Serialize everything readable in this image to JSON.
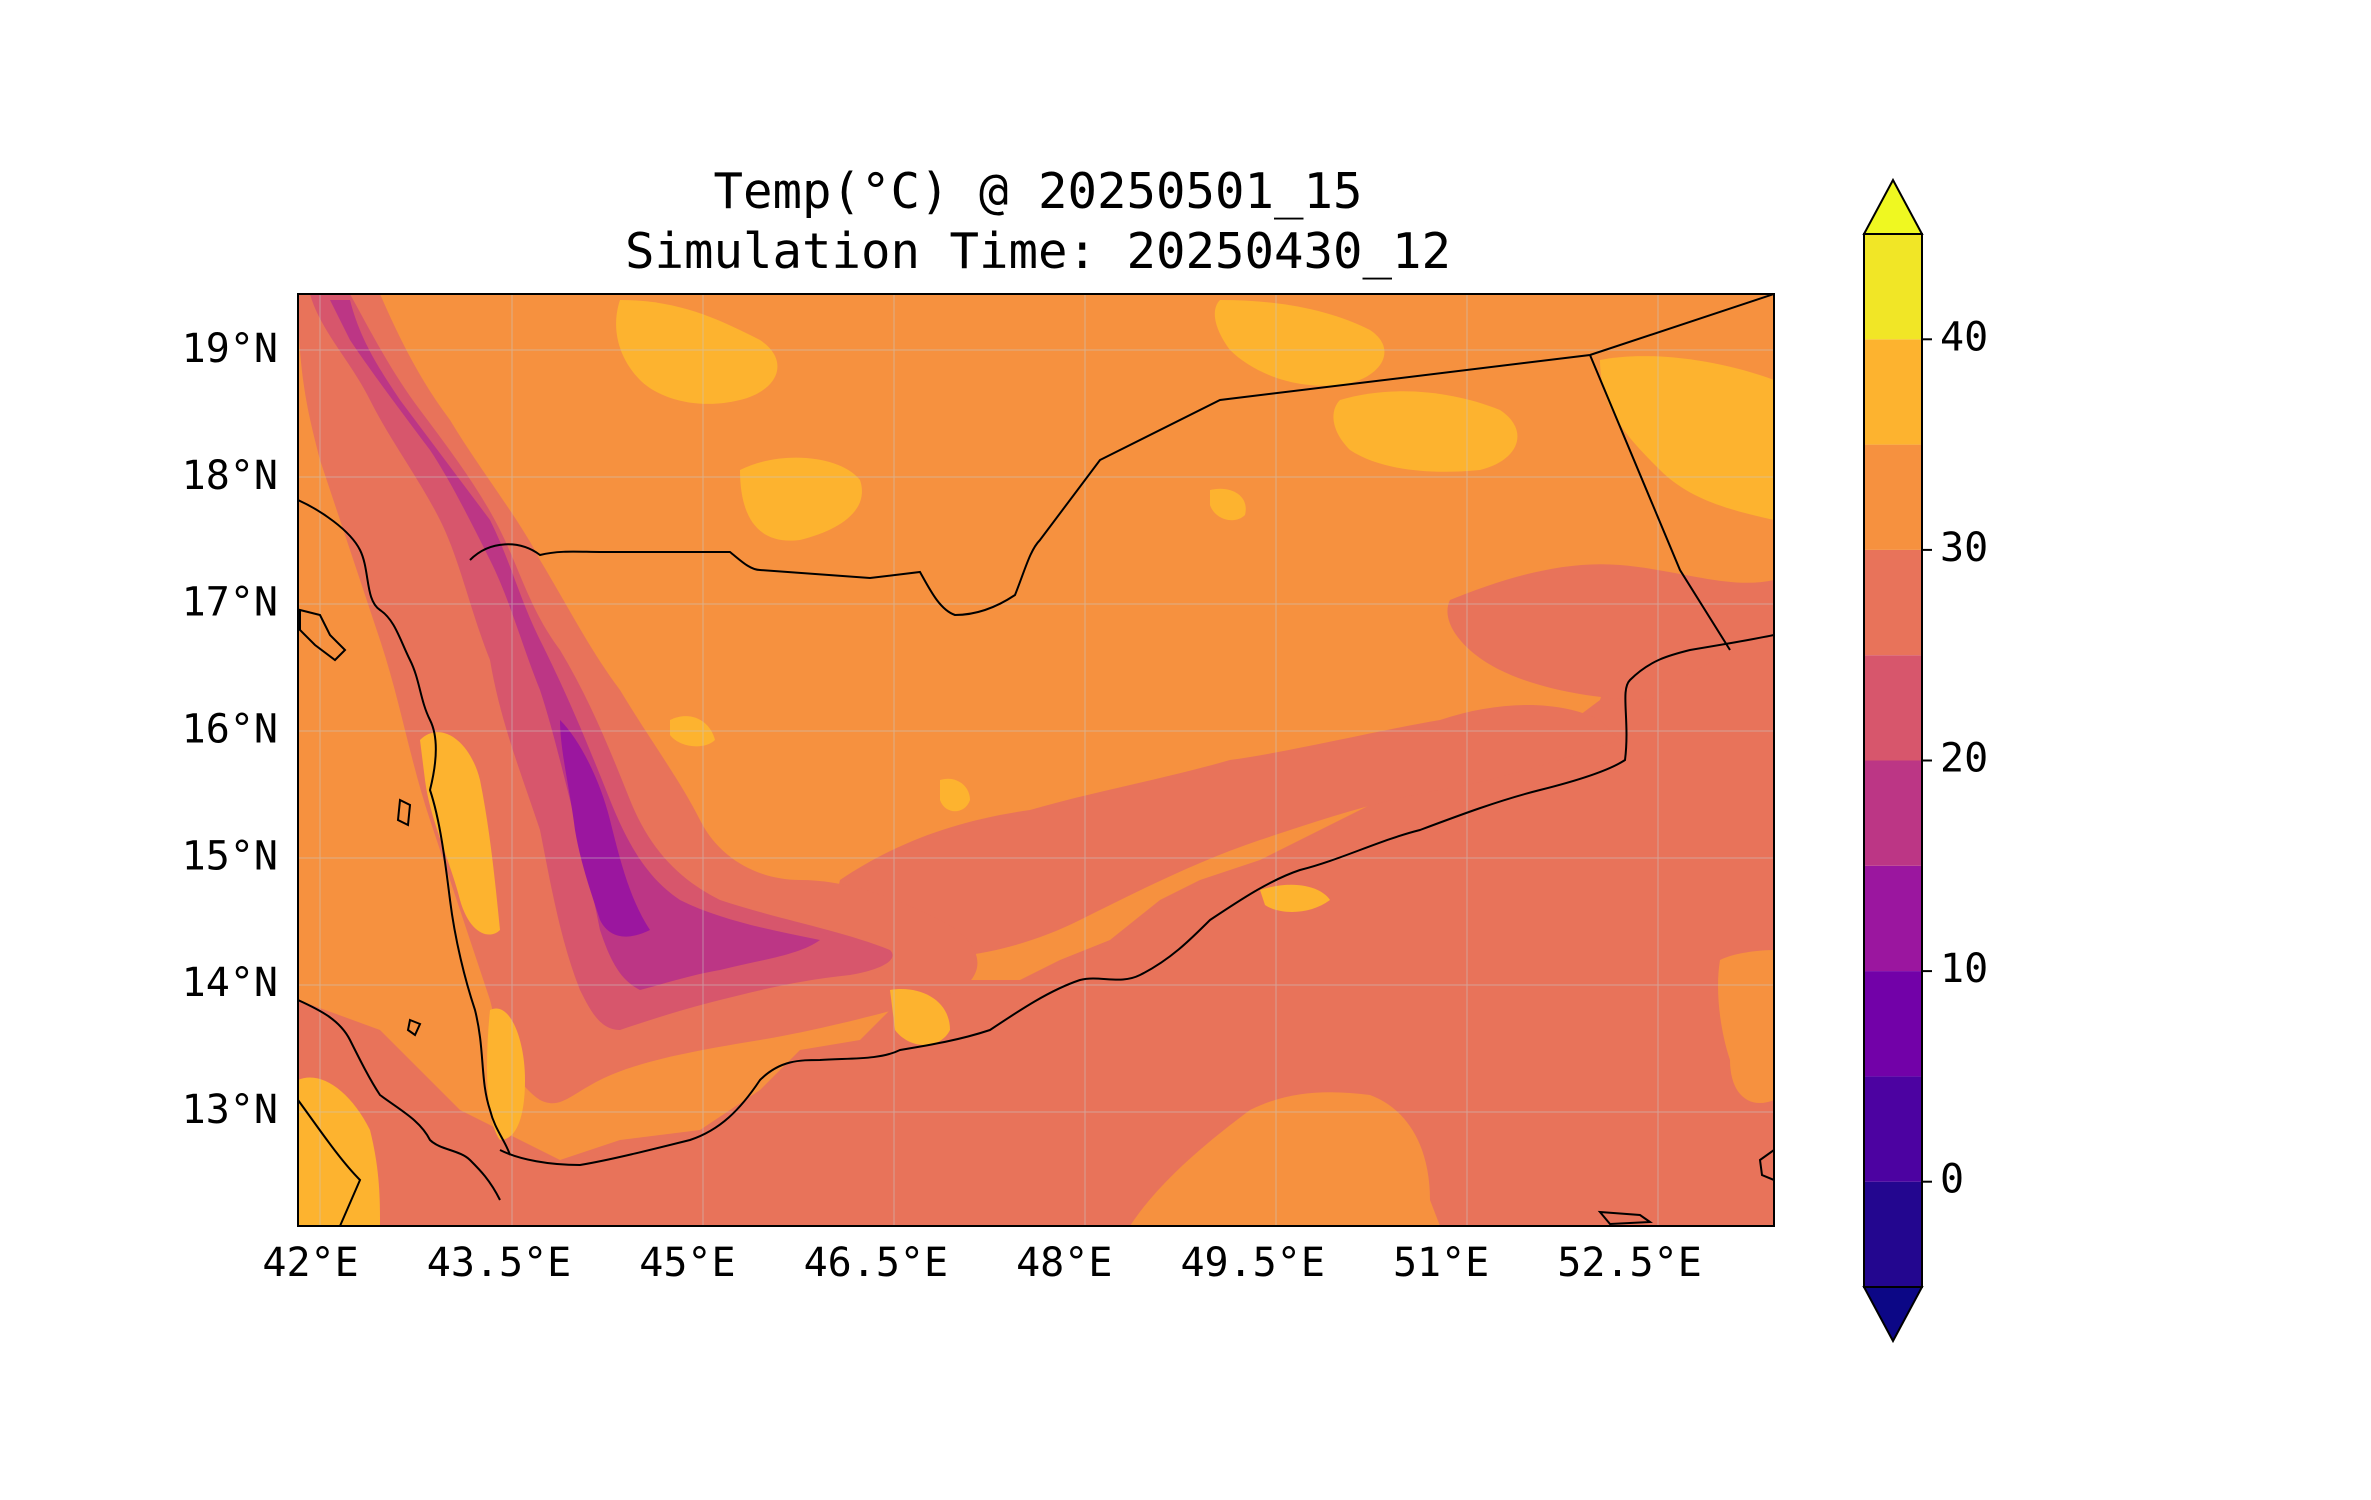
{
  "title": {
    "line1": "Temp(°C) @ 20250501_15",
    "line2": "Simulation Time: 20250430_12"
  },
  "map": {
    "lon_range": [
      41.9,
      53.65
    ],
    "lat_range": [
      12.1,
      19.45
    ],
    "lon_ticks": [
      "42°E",
      "43.5°E",
      "45°E",
      "46.5°E",
      "48°E",
      "49.5°E",
      "51°E",
      "52.5°E"
    ],
    "lon_tick_values": [
      42,
      43.5,
      45,
      46.5,
      48,
      49.5,
      51,
      52.5
    ],
    "lat_ticks": [
      "19°N",
      "18°N",
      "17°N",
      "16°N",
      "15°N",
      "14°N",
      "13°N"
    ],
    "lat_tick_values": [
      19,
      18,
      17,
      16,
      15,
      14,
      13
    ],
    "gridlines": true,
    "background_band_color": "#f6913f",
    "sea_color": "#e8735a"
  },
  "colorbar": {
    "ticks": [
      "0",
      "10",
      "20",
      "30",
      "40"
    ],
    "tick_values": [
      0,
      10,
      20,
      30,
      40
    ],
    "levels": [
      -5,
      0,
      5,
      10,
      15,
      20,
      25,
      30,
      35,
      40,
      45
    ],
    "under_color": "#0c0786",
    "over_color": "#eff821",
    "colors": [
      "#23068f",
      "#4c02a1",
      "#7201a8",
      "#9b169f",
      "#bc3685",
      "#d7566c",
      "#e8735a",
      "#f6913f",
      "#fdb32f",
      "#f1e626"
    ],
    "extend": "both"
  }
}
